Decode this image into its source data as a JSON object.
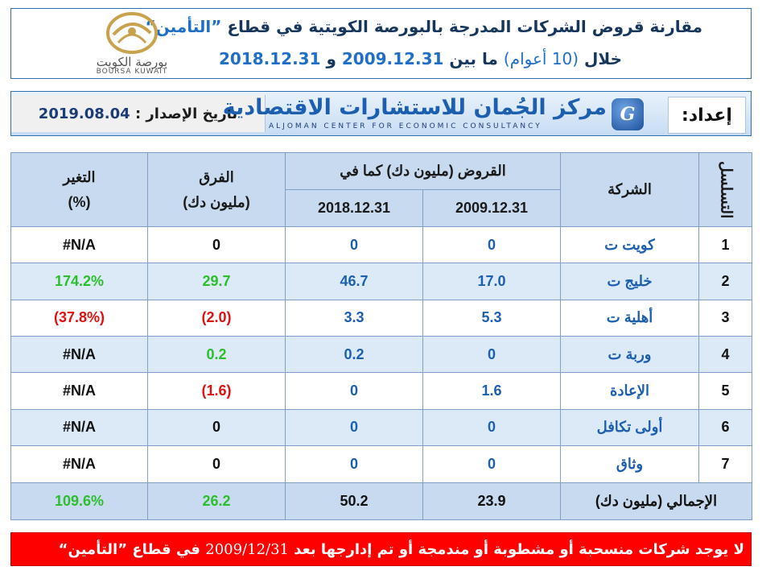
{
  "header": {
    "title_main": "مقارنة قروض الشركات المدرجة بالبورصة الكويتية في قطاع",
    "title_sector": "”التأمين“",
    "period_prefix": "خلال",
    "period_years": "(10 أعوام)",
    "period_between": "ما بين",
    "date_start": "2009.12.31",
    "period_and": "و",
    "date_end": "2018.12.31"
  },
  "logo": {
    "ar": "بورصة الكويت",
    "en": "BOURSA KUWAIT"
  },
  "band": {
    "issue_label": "تاريخ الإصدار :",
    "issue_date": "2019.08.04",
    "prepared_label": "إعداد:",
    "center_ar": "مركز الجُمان للاستشارات الاقتصادية",
    "center_en": "ALJOMAN CENTER FOR ECONOMIC CONSULTANCY"
  },
  "table": {
    "headers": {
      "serial": "التسلسل",
      "company": "الشركة",
      "loans_group": "القروض (مليون دك) كما في",
      "date_2009": "2009.12.31",
      "date_2018": "2018.12.31",
      "diff": "الفرق",
      "diff_unit": "(مليون دك)",
      "change": "التغير",
      "change_unit": "(%)"
    },
    "rows": [
      {
        "serial": "1",
        "company": "كويت ت",
        "v2009": "0",
        "v2018": "0",
        "diff": "0",
        "change": "#N/A"
      },
      {
        "serial": "2",
        "company": "خليج ت",
        "v2009": "17.0",
        "v2018": "46.7",
        "diff": "29.7",
        "change": "174.2%"
      },
      {
        "serial": "3",
        "company": "أهلية ت",
        "v2009": "5.3",
        "v2018": "3.3",
        "diff": "(2.0)",
        "change": "(37.8%)"
      },
      {
        "serial": "4",
        "company": "وربة ت",
        "v2009": "0",
        "v2018": "0.2",
        "diff": "0.2",
        "change": "#N/A"
      },
      {
        "serial": "5",
        "company": "الإعادة",
        "v2009": "1.6",
        "v2018": "0",
        "diff": "(1.6)",
        "change": "#N/A"
      },
      {
        "serial": "6",
        "company": "أولى تكافل",
        "v2009": "0",
        "v2018": "0",
        "diff": "0",
        "change": "#N/A"
      },
      {
        "serial": "7",
        "company": "وثاق",
        "v2009": "0",
        "v2018": "0",
        "diff": "0",
        "change": "#N/A"
      }
    ],
    "total": {
      "label": "الإجمالي (مليون دك)",
      "v2009": "23.9",
      "v2018": "50.2",
      "diff": "26.2",
      "change": "109.6%"
    }
  },
  "banner": {
    "text_before": "لا يوجد شركات منسحبة أو مشطوبة أو مندمجة أو تم إدارجها بعد",
    "year": "2009/12/31",
    "text_after": "في قطاع ”التأمين“"
  },
  "colors": {
    "positive": "#2bbf2b",
    "negative": "#e01010",
    "header_bg": "#c8daf0",
    "alt_row_bg": "#dce9f7",
    "banner_bg": "#ff0000"
  }
}
